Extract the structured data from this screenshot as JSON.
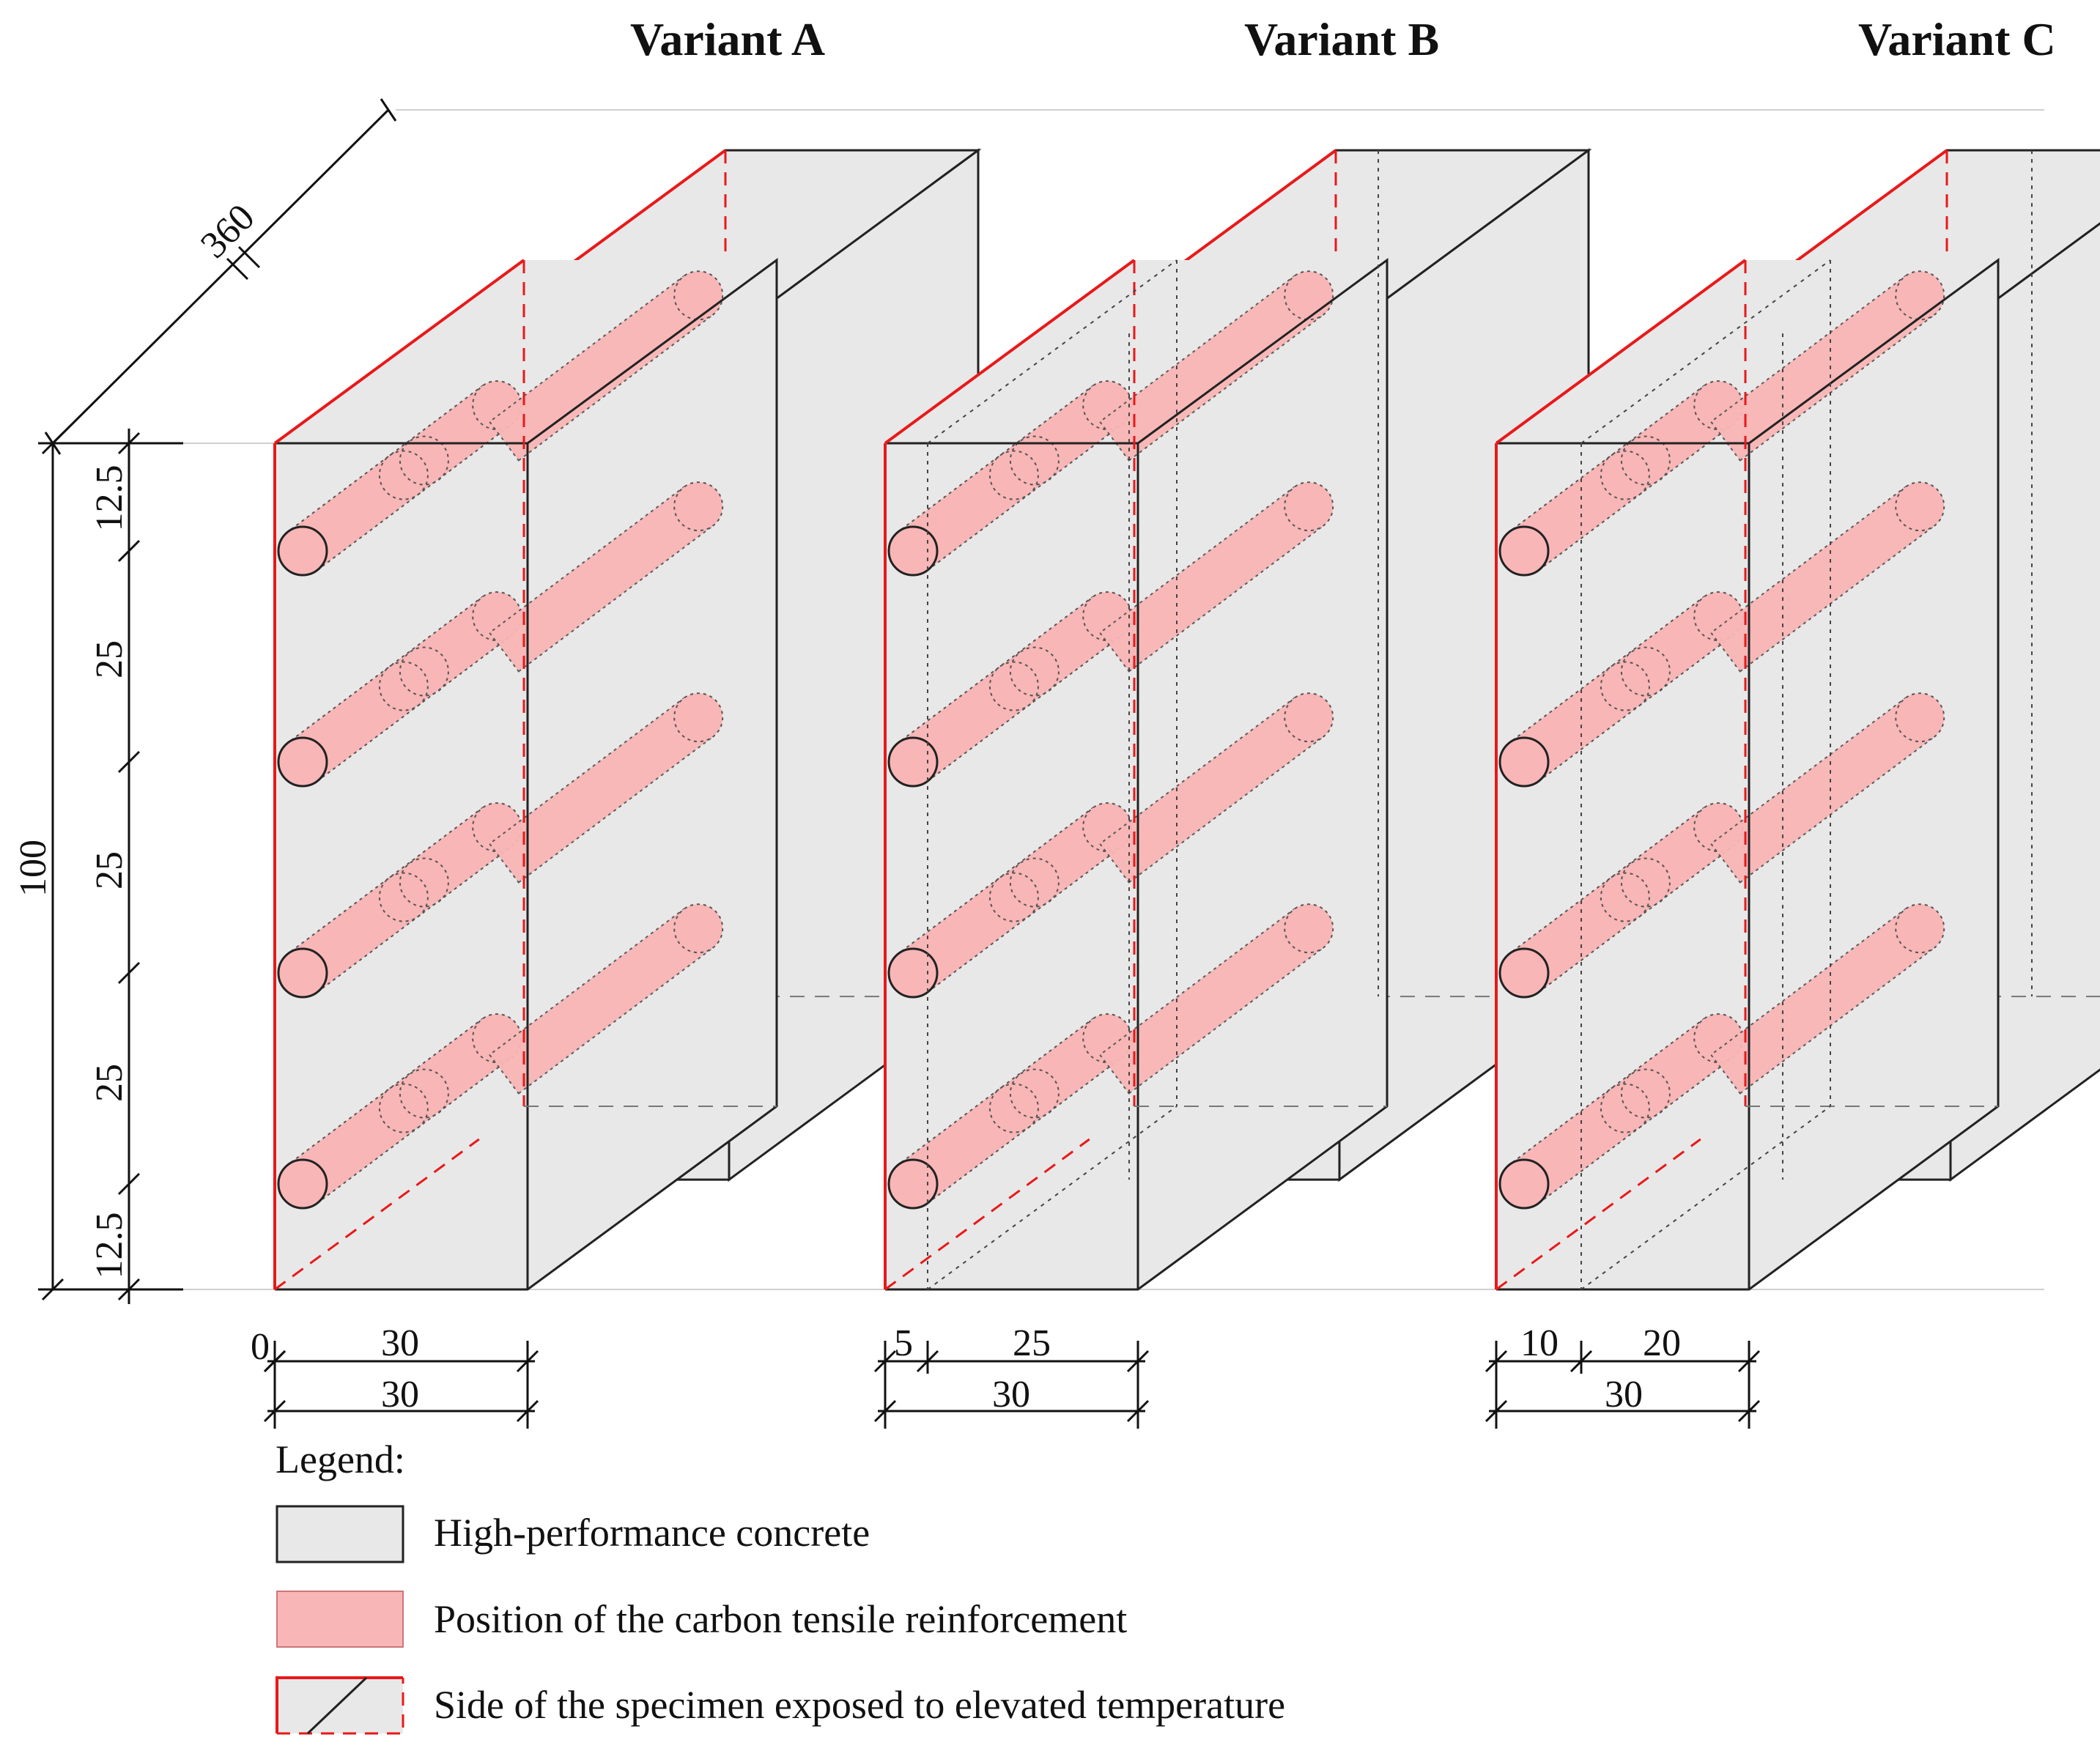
{
  "variants": [
    {
      "title": "Variant A",
      "width_dims": {
        "left": "0",
        "right": "30",
        "total": "30"
      }
    },
    {
      "title": "Variant B",
      "width_dims": {
        "left": "5",
        "right": "25",
        "total": "30"
      }
    },
    {
      "title": "Variant C",
      "width_dims": {
        "left": "10",
        "right": "20",
        "total": "30"
      }
    }
  ],
  "depth_dim": "360",
  "height_dim": {
    "total": "100",
    "segments": [
      "12.5",
      "25",
      "25",
      "25",
      "12.5"
    ]
  },
  "legend": {
    "title": "Legend:",
    "items": [
      {
        "label": "High-performance concrete"
      },
      {
        "label": "Position of the carbon tensile reinforcement"
      },
      {
        "label": "Side of the specimen exposed to elevated temperature"
      }
    ]
  },
  "colors": {
    "concrete_fill": "#e8e8e8",
    "reinforcement_fill": "#f9b6b6",
    "exposed_edge": "#e8191a",
    "outline": "#222222"
  }
}
